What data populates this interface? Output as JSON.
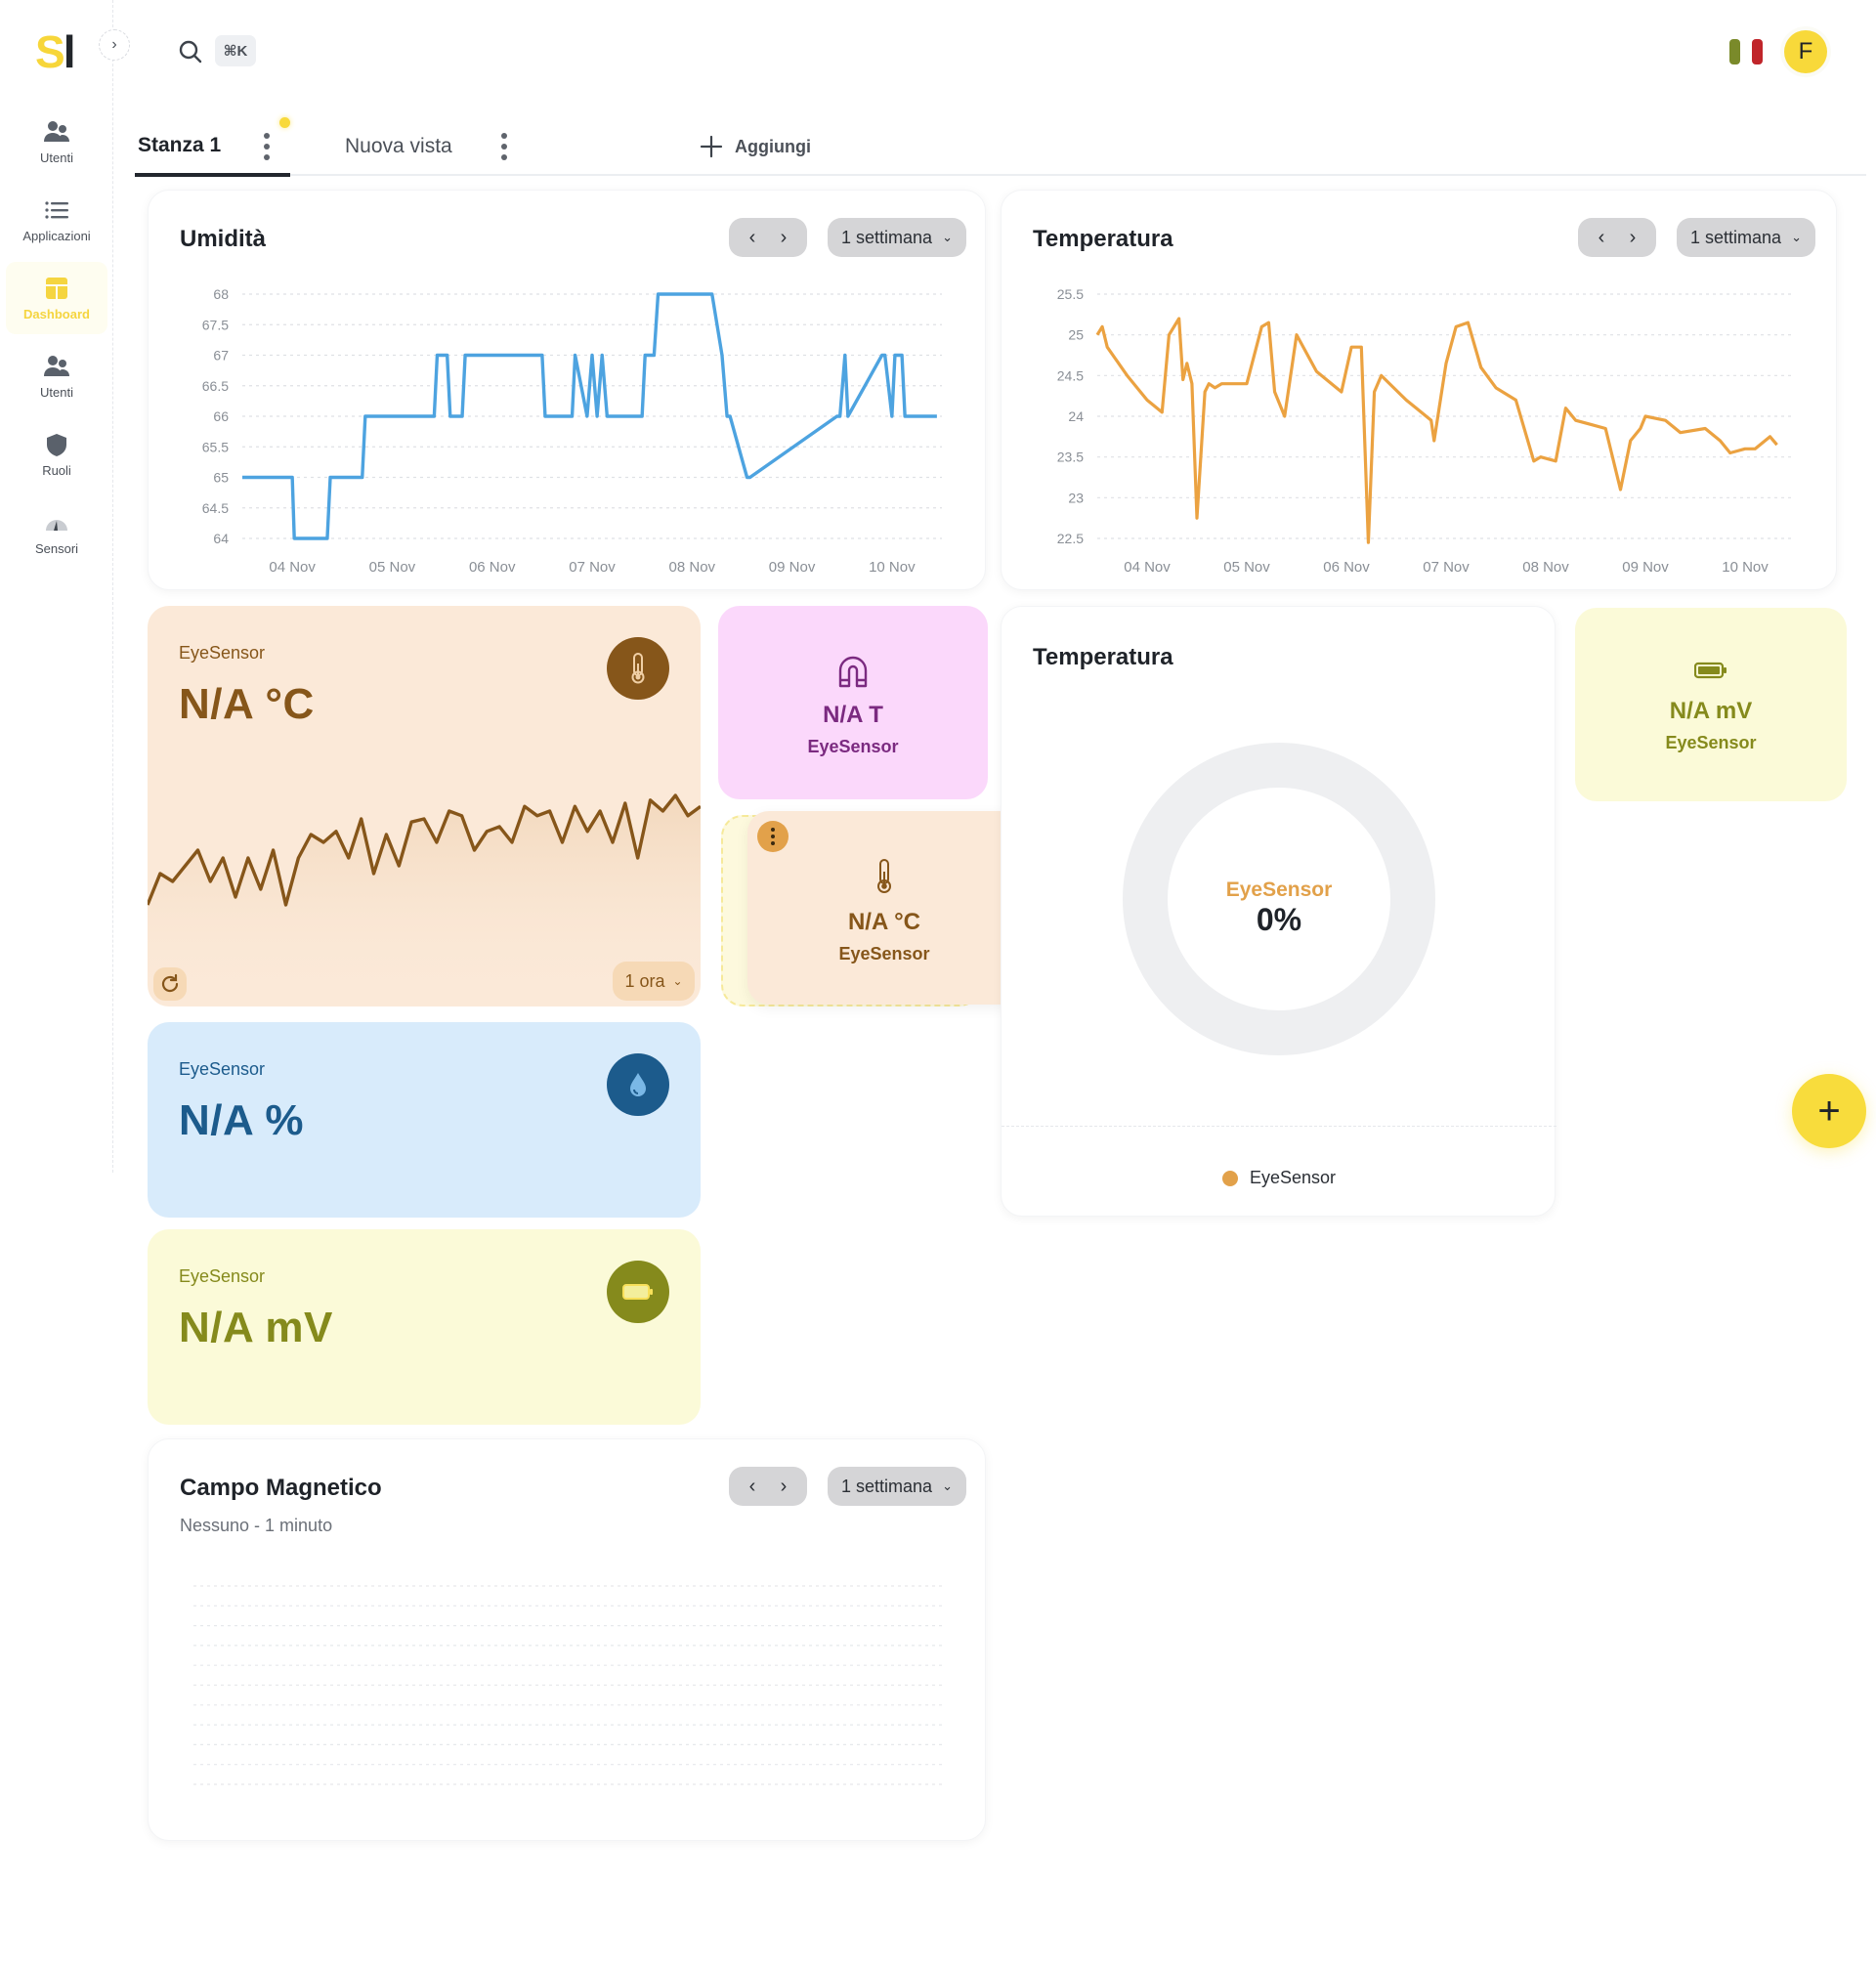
{
  "app": {
    "logo_s": "S",
    "logo_l": "l",
    "search_shortcut": "⌘K",
    "user_initial": "F",
    "flag_colors": [
      "#7a8a2a",
      "#ffffff",
      "#c0252a"
    ],
    "accent": "#f8d93a"
  },
  "sidebar": {
    "items": [
      {
        "label": "Utenti",
        "icon": "users-icon",
        "active": false
      },
      {
        "label": "Applicazioni",
        "icon": "list-icon",
        "active": false
      },
      {
        "label": "Dashboard",
        "icon": "dashboard-icon",
        "active": true
      },
      {
        "label": "Utenti",
        "icon": "users-icon",
        "active": false
      },
      {
        "label": "Ruoli",
        "icon": "shield-icon",
        "active": false
      },
      {
        "label": "Sensori",
        "icon": "gauge-icon",
        "active": false
      }
    ]
  },
  "tabs": {
    "items": [
      {
        "label": "Stanza 1",
        "active": true
      },
      {
        "label": "Nuova vista",
        "active": false
      }
    ],
    "add_label": "Aggiungi"
  },
  "widgets": {
    "humidity_chart": {
      "title": "Umidità",
      "range": "1 settimana",
      "color": "#4da3e0"
    },
    "temperature_chart": {
      "title": "Temperatura",
      "range": "1 settimana",
      "color": "#eba241"
    },
    "temp_tile": {
      "sensor": "EyeSensor",
      "value": "N/A °C",
      "range": "1 ora",
      "bg": "#fbe9d8",
      "fg": "#86561a"
    },
    "humidity_tile": {
      "sensor": "EyeSensor",
      "value": "N/A %",
      "bg": "#d8ebfb",
      "fg": "#1c5b8c"
    },
    "battery_tile": {
      "sensor": "EyeSensor",
      "value": "N/A mV",
      "bg": "#fbfad8",
      "fg": "#858a1c"
    },
    "magnet_mini": {
      "value": "N/A T",
      "sensor": "EyeSensor",
      "bg": "#fbd8fb",
      "fg": "#7b2a80"
    },
    "temp_mini": {
      "value": "N/A °C",
      "sensor": "EyeSensor",
      "bg": "#fbe9d8",
      "fg": "#86561a"
    },
    "battery_mini": {
      "value": "N/A mV",
      "sensor": "EyeSensor",
      "bg": "#fbfad8",
      "fg": "#858a1c"
    },
    "donut": {
      "title": "Temperatura",
      "center_label": "EyeSensor",
      "center_value": "0%",
      "legend": "EyeSensor",
      "legend_color": "#eba241"
    },
    "magnetic_chart": {
      "title": "Campo Magnetico",
      "subtitle": "Nessuno - 1 minuto",
      "range": "1 settimana"
    }
  },
  "chart_data": [
    {
      "type": "line",
      "title": "Umidità",
      "xlabel": "",
      "ylabel": "",
      "categories": [
        "04 Nov",
        "05 Nov",
        "06 Nov",
        "07 Nov",
        "08 Nov",
        "09 Nov",
        "10 Nov"
      ],
      "yticks": [
        64,
        64.5,
        65,
        65.5,
        66,
        66.5,
        67,
        67.5,
        68
      ],
      "ylim": [
        64,
        68
      ],
      "grid": true,
      "x": [
        0,
        0.5,
        0.52,
        0.85,
        0.88,
        1.2,
        1.23,
        1.92,
        1.95,
        2.05,
        2.08,
        2.2,
        2.23,
        3.0,
        3.03,
        3.3,
        3.33,
        3.45,
        3.5,
        3.55,
        3.6,
        3.65,
        3.7,
        4.0,
        4.03,
        4.12,
        4.16,
        4.7,
        4.8,
        4.85,
        4.88,
        5.05,
        5.08,
        5.95,
        5.98,
        6.03,
        6.06,
        6.4,
        6.43,
        6.5,
        6.53,
        6.6,
        6.63,
        6.95
      ],
      "values": [
        65,
        65,
        64,
        64,
        65,
        65,
        66,
        66,
        67,
        67,
        66,
        66,
        67,
        67,
        66,
        66,
        67,
        66,
        67,
        66,
        67,
        66,
        66,
        66,
        67,
        67,
        68,
        68,
        67,
        66,
        66,
        65,
        65,
        66,
        66,
        67,
        66,
        67,
        67,
        66,
        67,
        67,
        66,
        66
      ],
      "series": [
        {
          "name": "EyeSensor",
          "color": "#4da3e0"
        }
      ]
    },
    {
      "type": "line",
      "title": "Temperatura",
      "xlabel": "",
      "ylabel": "",
      "categories": [
        "04 Nov",
        "05 Nov",
        "06 Nov",
        "07 Nov",
        "08 Nov",
        "09 Nov",
        "10 Nov"
      ],
      "yticks": [
        22.5,
        23,
        23.5,
        24,
        24.5,
        25,
        25.5
      ],
      "ylim": [
        22.5,
        25.5
      ],
      "grid": true,
      "x": [
        0,
        0.05,
        0.1,
        0.3,
        0.5,
        0.65,
        0.72,
        0.82,
        0.86,
        0.9,
        0.95,
        1.0,
        1.08,
        1.12,
        1.18,
        1.25,
        1.5,
        1.65,
        1.72,
        1.78,
        1.88,
        2.0,
        2.2,
        2.4,
        2.45,
        2.55,
        2.65,
        2.72,
        2.78,
        2.85,
        3.1,
        3.2,
        3.35,
        3.38,
        3.5,
        3.6,
        3.72,
        3.85,
        4.0,
        4.2,
        4.38,
        4.45,
        4.6,
        4.7,
        4.8,
        4.95,
        5.1,
        5.25,
        5.35,
        5.45,
        5.5,
        5.7,
        5.85,
        6.1,
        6.25,
        6.35,
        6.5,
        6.6,
        6.75,
        6.82
      ],
      "values": [
        25,
        25.1,
        24.85,
        24.5,
        24.2,
        24.05,
        25.0,
        25.2,
        24.45,
        24.65,
        24.4,
        22.75,
        24.3,
        24.4,
        24.35,
        24.4,
        24.4,
        25.1,
        25.15,
        24.3,
        24.0,
        25.0,
        24.55,
        24.35,
        24.3,
        24.85,
        24.85,
        22.45,
        24.3,
        24.5,
        24.2,
        24.1,
        23.95,
        23.7,
        24.65,
        25.1,
        25.15,
        24.6,
        24.35,
        24.2,
        23.45,
        23.5,
        23.45,
        24.1,
        23.95,
        23.9,
        23.85,
        23.1,
        23.7,
        23.85,
        24.0,
        23.95,
        23.8,
        23.85,
        23.7,
        23.55,
        23.6,
        23.6,
        23.75,
        23.65
      ],
      "series": [
        {
          "name": "EyeSensor",
          "color": "#eba241"
        }
      ]
    },
    {
      "type": "area",
      "title": "EyeSensor temperature sparkline (1 ora)",
      "series": [
        {
          "name": "EyeSensor",
          "color": "#86561a"
        }
      ],
      "values": [
        0.15,
        0.35,
        0.3,
        0.4,
        0.5,
        0.3,
        0.45,
        0.2,
        0.45,
        0.25,
        0.5,
        0.15,
        0.45,
        0.6,
        0.55,
        0.62,
        0.45,
        0.7,
        0.35,
        0.6,
        0.4,
        0.68,
        0.7,
        0.55,
        0.75,
        0.72,
        0.5,
        0.62,
        0.65,
        0.55,
        0.78,
        0.72,
        0.75,
        0.55,
        0.78,
        0.62,
        0.75,
        0.55,
        0.8,
        0.45,
        0.82,
        0.75,
        0.85,
        0.72,
        0.78
      ]
    },
    {
      "type": "pie",
      "title": "Temperatura",
      "categories": [
        "EyeSensor"
      ],
      "values": [
        0
      ],
      "center_value": "0%"
    },
    {
      "type": "line",
      "title": "Campo Magnetico",
      "subtitle": "Nessuno - 1 minuto",
      "series": [],
      "grid": true
    }
  ]
}
